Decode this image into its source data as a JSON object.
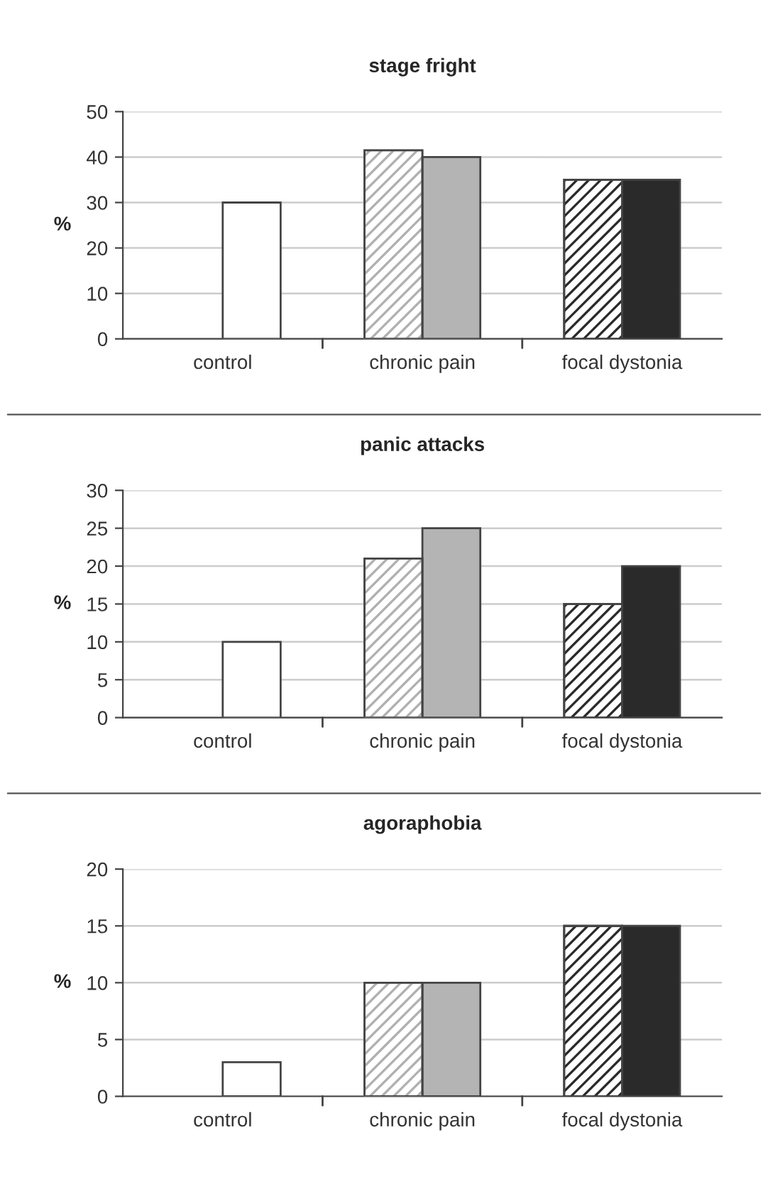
{
  "chart_data": [
    {
      "type": "bar",
      "title": "stage fright",
      "ylabel": "%",
      "categories": [
        "control",
        "chronic pain",
        "focal dystonia"
      ],
      "ylim": [
        0,
        50
      ],
      "yticks": [
        0,
        10,
        20,
        30,
        40,
        50
      ],
      "grid": "y",
      "legend": false,
      "series": [
        {
          "colors": [
            "#ffffff",
            "#b0b0b0",
            "#2a2a2a"
          ],
          "values": [
            null,
            41.5,
            35
          ]
        },
        {
          "colors": [
            "#ffffff",
            "#b4b4b4",
            "#2a2a2a"
          ],
          "values": [
            30,
            40,
            35
          ]
        }
      ]
    },
    {
      "type": "bar",
      "title": "panic attacks",
      "ylabel": "%",
      "categories": [
        "control",
        "chronic pain",
        "focal dystonia"
      ],
      "ylim": [
        0,
        30
      ],
      "yticks": [
        0,
        5,
        10,
        15,
        20,
        25,
        30
      ],
      "grid": "y",
      "legend": false,
      "series": [
        {
          "colors": [
            "#ffffff",
            "#b0b0b0",
            "#2a2a2a"
          ],
          "values": [
            null,
            21,
            15
          ]
        },
        {
          "colors": [
            "#ffffff",
            "#b4b4b4",
            "#2a2a2a"
          ],
          "values": [
            10,
            25,
            20
          ]
        }
      ]
    },
    {
      "type": "bar",
      "title": "agoraphobia",
      "ylabel": "%",
      "categories": [
        "control",
        "chronic pain",
        "focal dystonia"
      ],
      "ylim": [
        0,
        20
      ],
      "yticks": [
        0,
        5,
        10,
        15,
        20
      ],
      "grid": "y",
      "legend": false,
      "series": [
        {
          "colors": [
            "#ffffff",
            "#b0b0b0",
            "#2a2a2a"
          ],
          "values": [
            null,
            10,
            15
          ]
        },
        {
          "colors": [
            "#ffffff",
            "#b4b4b4",
            "#2a2a2a"
          ],
          "values": [
            3,
            10,
            15
          ]
        }
      ]
    }
  ]
}
